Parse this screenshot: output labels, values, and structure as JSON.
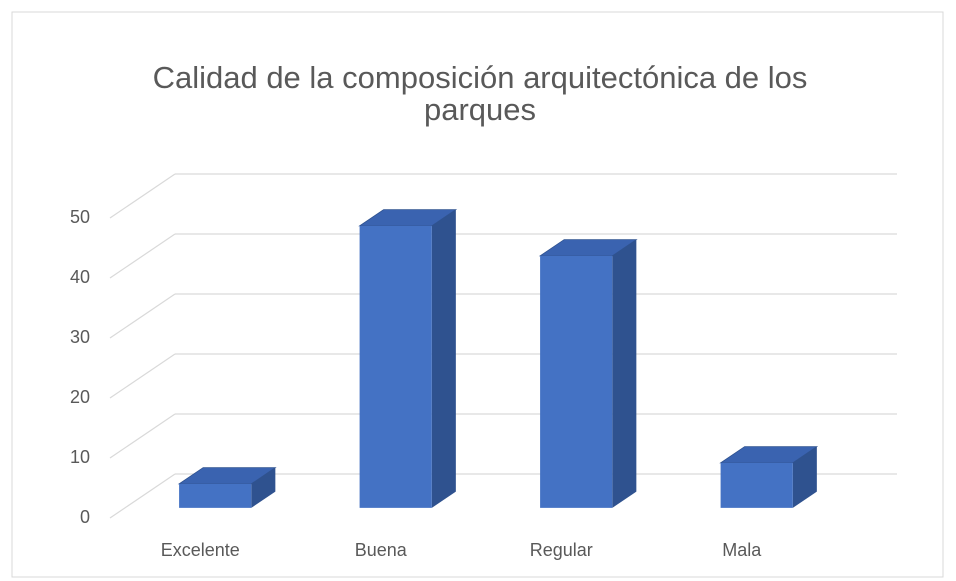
{
  "chart_data": {
    "type": "bar3d",
    "title": [
      "Calidad de la composición arquitectónica de los",
      "parques"
    ],
    "categories": [
      "Excelente",
      "Buena",
      "Regular",
      "Mala"
    ],
    "values": [
      4,
      47,
      42,
      7.5
    ],
    "color": "#4472c4",
    "ylim": [
      0,
      50
    ],
    "yticks": [
      0,
      10,
      20,
      30,
      40,
      50
    ],
    "grid": true
  }
}
